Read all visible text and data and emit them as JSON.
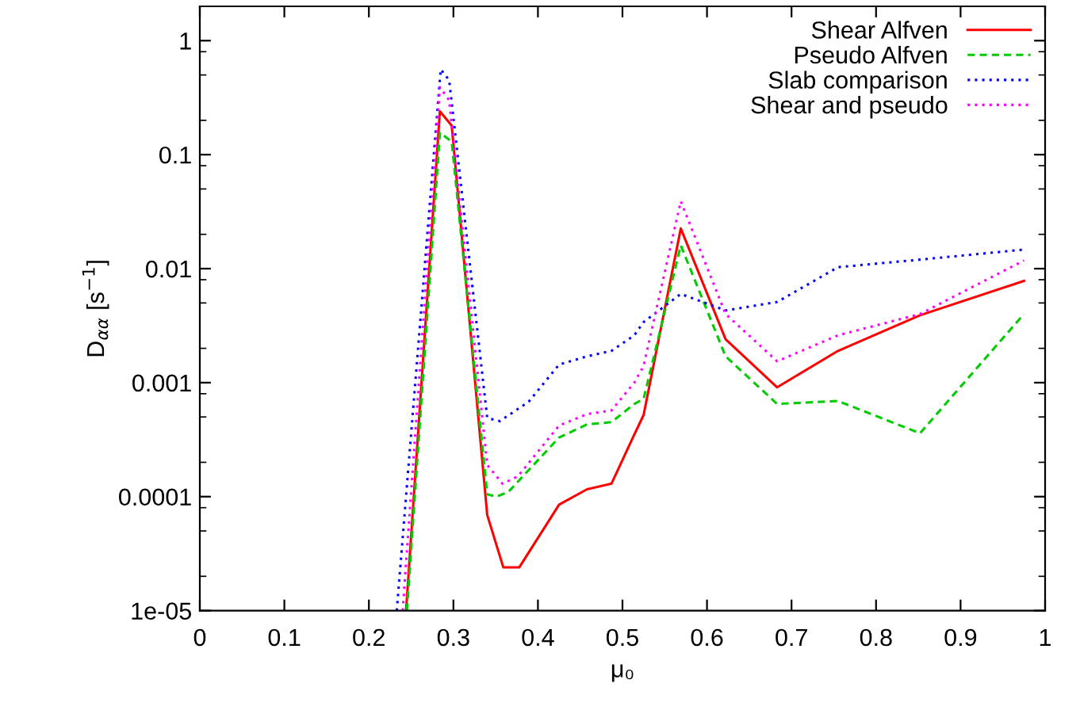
{
  "chart_data": {
    "type": "line",
    "xlabel": "μ₀",
    "ylabel": "D$_{αα}$ [s$^{−1}$]",
    "log": "y",
    "xlim": [
      0,
      1
    ],
    "ylim": [
      1e-05,
      2
    ],
    "xticks": [
      0,
      0.1,
      0.2,
      0.3,
      0.4,
      0.5,
      0.6,
      0.7,
      0.8,
      0.9,
      1
    ],
    "yticks": [
      1e-05,
      0.0001,
      0.001,
      0.01,
      0.1,
      1
    ],
    "grid": false,
    "legend": "top right",
    "marker": "none",
    "series": [
      {
        "name": "Shear Alfven",
        "color": "#ff0000",
        "line_style": "solid",
        "x": [
          0.244,
          0.284,
          0.298,
          0.34,
          0.359,
          0.378,
          0.425,
          0.458,
          0.487,
          0.514,
          0.525,
          0.569,
          0.622,
          0.683,
          0.755,
          0.852,
          0.975
        ],
        "values": [
          1e-05,
          0.24,
          0.18,
          6.9e-05,
          2.4e-05,
          2.4e-05,
          8.5e-05,
          0.000116,
          0.00013,
          0.00035,
          0.00052,
          0.0225,
          0.0024,
          0.00091,
          0.0019,
          0.0039,
          0.0078
        ]
      },
      {
        "name": "Pseudo Alfven",
        "color": "#00cc00",
        "line_style": "dashed",
        "x": [
          0.245,
          0.284,
          0.298,
          0.34,
          0.351,
          0.365,
          0.425,
          0.458,
          0.487,
          0.514,
          0.525,
          0.569,
          0.622,
          0.683,
          0.755,
          0.852,
          0.975
        ],
        "values": [
          1e-05,
          0.156,
          0.13,
          0.000105,
          0.0001,
          0.00011,
          0.00033,
          0.00043,
          0.00045,
          0.00065,
          0.00072,
          0.016,
          0.0017,
          0.00065,
          0.00069,
          0.00036,
          0.004
        ]
      },
      {
        "name": "Slab comparison",
        "color": "#0000ff",
        "line_style": "dotted",
        "x": [
          0.233,
          0.285,
          0.295,
          0.34,
          0.355,
          0.389,
          0.425,
          0.458,
          0.487,
          0.514,
          0.525,
          0.569,
          0.622,
          0.683,
          0.755,
          0.852,
          0.975
        ],
        "values": [
          1e-05,
          0.56,
          0.45,
          0.00049,
          0.00046,
          0.00068,
          0.00144,
          0.0017,
          0.0019,
          0.0026,
          0.0034,
          0.006,
          0.0043,
          0.0051,
          0.0103,
          0.012,
          0.0147
        ]
      },
      {
        "name": "Shear and pseudo",
        "color": "#ff00ff",
        "line_style": "dotted",
        "x": [
          0.24,
          0.284,
          0.295,
          0.34,
          0.358,
          0.376,
          0.425,
          0.458,
          0.487,
          0.514,
          0.525,
          0.569,
          0.622,
          0.683,
          0.755,
          0.852,
          0.975
        ],
        "values": [
          1e-05,
          0.39,
          0.3,
          0.00019,
          0.00013,
          0.00015,
          0.00042,
          0.00053,
          0.00057,
          0.001,
          0.0014,
          0.039,
          0.004,
          0.00154,
          0.0026,
          0.004,
          0.0118
        ]
      }
    ]
  }
}
